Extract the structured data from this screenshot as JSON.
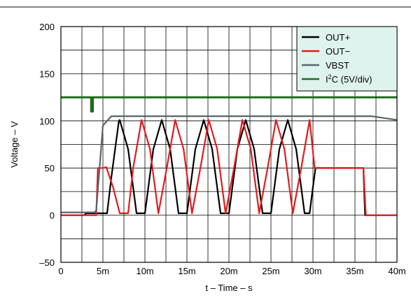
{
  "colors": {
    "out_plus": "#000000",
    "out_minus": "#e31a1c",
    "vbst": "#5a6370",
    "i2c": "#1e6b1e",
    "legend_bg": "#dff3ee",
    "grid": "#000000"
  },
  "chart_data": {
    "type": "line",
    "xlabel": "t – Time – s",
    "ylabel": "Voltage – V",
    "xlim": [
      0,
      40
    ],
    "ylim": [
      -50,
      200
    ],
    "x_unit": "ms",
    "grid": true,
    "legend_position": "top-right",
    "x_ticks": [
      {
        "value": 0,
        "label": "0"
      },
      {
        "value": 5,
        "label": "5m"
      },
      {
        "value": 10,
        "label": "10m"
      },
      {
        "value": 15,
        "label": "15m"
      },
      {
        "value": 20,
        "label": "20m"
      },
      {
        "value": 25,
        "label": "25m"
      },
      {
        "value": 30,
        "label": "30m"
      },
      {
        "value": 35,
        "label": "35m"
      },
      {
        "value": 40,
        "label": "40m"
      }
    ],
    "y_ticks": [
      {
        "value": 200,
        "label": "200"
      },
      {
        "value": 150,
        "label": "150"
      },
      {
        "value": 100,
        "label": "100"
      },
      {
        "value": 50,
        "label": "50"
      },
      {
        "value": 0,
        "label": "0"
      },
      {
        "value": -50,
        "label": "–50"
      }
    ],
    "series": [
      {
        "name": "OUT+",
        "color_key": "out_plus",
        "x": [
          0,
          2.8,
          3.0,
          5.0,
          5.4,
          5.5,
          6.0,
          6.9,
          7.0,
          8.0,
          9.0,
          10.0,
          11.0,
          12.0,
          13.0,
          14.0,
          15.0,
          16.0,
          17.0,
          18.0,
          19.0,
          20.0,
          21.0,
          22.0,
          23.0,
          24.0,
          25.0,
          26.0,
          27.0,
          28.0,
          29.0,
          29.6,
          30.0,
          30.3,
          36.0,
          36.2,
          40.0
        ],
        "y": [
          0,
          0,
          2,
          2,
          2,
          2,
          40,
          100,
          101,
          70,
          2,
          2,
          70,
          101,
          70,
          2,
          2,
          70,
          101,
          70,
          2,
          2,
          70,
          101,
          70,
          2,
          2,
          70,
          101,
          70,
          2,
          2,
          30,
          50,
          50,
          0,
          0
        ]
      },
      {
        "name": "OUT−",
        "color_key": "out_minus",
        "x": [
          0,
          4.2,
          4.4,
          5.0,
          5.4,
          6.2,
          7.0,
          8.0,
          8.6,
          9.6,
          10.6,
          11.6,
          12.6,
          13.6,
          14.6,
          15.6,
          16.6,
          17.6,
          18.6,
          19.6,
          20.6,
          21.6,
          22.6,
          23.6,
          24.6,
          25.6,
          26.6,
          27.6,
          28.6,
          29.6,
          30.2,
          30.4,
          35.8,
          36.0,
          36.3,
          40.0
        ],
        "y": [
          0,
          0,
          50,
          50,
          51,
          30,
          2,
          2,
          50,
          101,
          70,
          2,
          50,
          101,
          70,
          2,
          50,
          101,
          70,
          2,
          50,
          101,
          70,
          2,
          50,
          101,
          70,
          2,
          50,
          101,
          50,
          50,
          50,
          50,
          0,
          0
        ]
      },
      {
        "name": "VBST",
        "color_key": "vbst",
        "x": [
          0,
          4.0,
          4.2,
          5.0,
          6.0,
          10.0,
          20.0,
          30.0,
          37.0,
          38.5,
          40.0
        ],
        "y": [
          3,
          3,
          5,
          95,
          105,
          105,
          105,
          105,
          105,
          103,
          101
        ]
      },
      {
        "name": "I²C (5V/div)",
        "color_key": "i2c",
        "x": [
          0,
          3.6,
          3.6,
          3.8,
          3.8,
          40
        ],
        "y": [
          125,
          125,
          110,
          110,
          125,
          125
        ]
      }
    ]
  },
  "legend": [
    {
      "label": "OUT+",
      "color_key": "out_plus"
    },
    {
      "label": "OUT−",
      "color_key": "out_minus"
    },
    {
      "label": "VBST",
      "color_key": "vbst"
    },
    {
      "label_prefix": "I",
      "label_sup": "2",
      "label_suffix": "C (5V/div)",
      "color_key": "i2c"
    }
  ]
}
